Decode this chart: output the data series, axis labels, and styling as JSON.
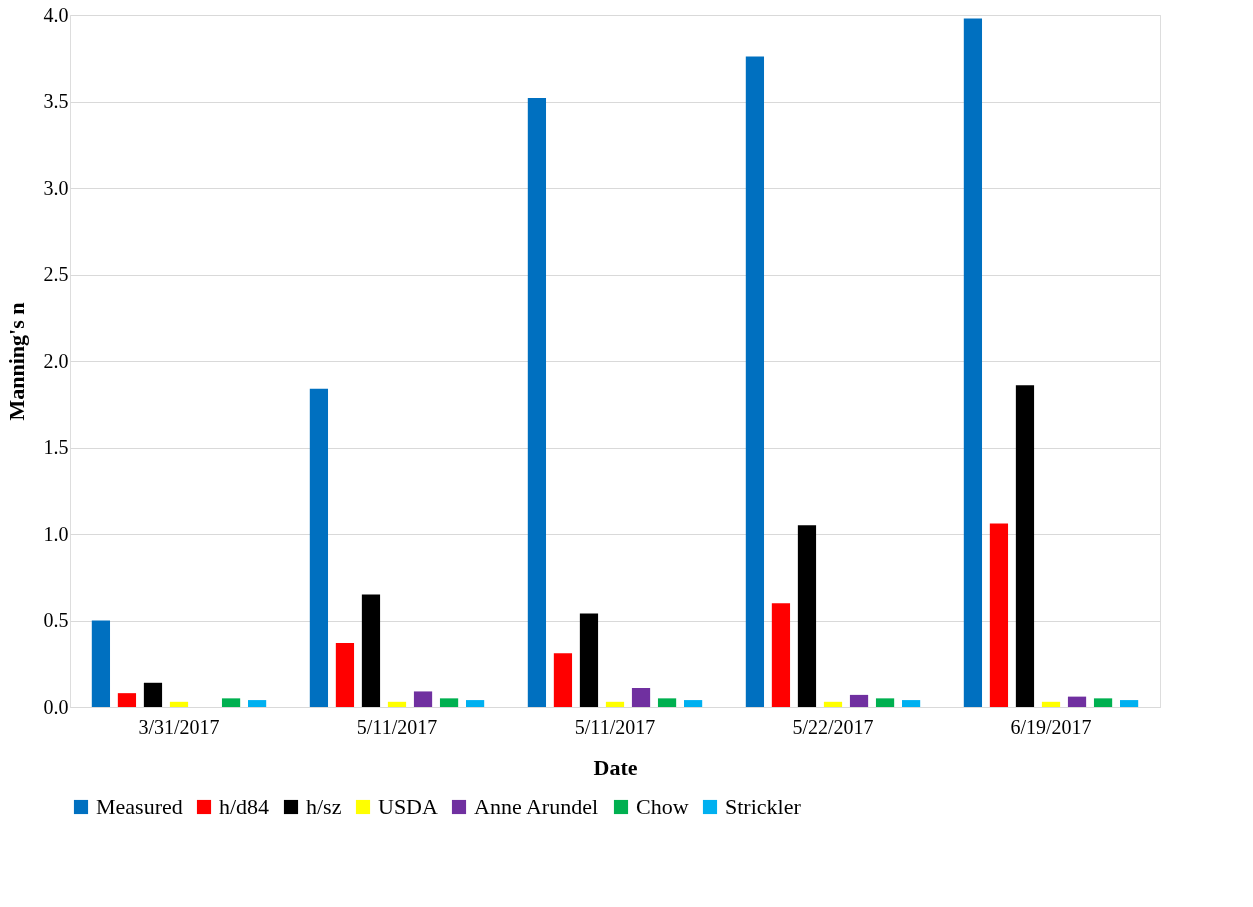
{
  "chart_data": {
    "type": "bar",
    "xlabel": "Date",
    "ylabel": "Manning's n",
    "categories": [
      "3/31/2017",
      "5/11/2017",
      "5/11/2017",
      "5/22/2017",
      "6/19/2017"
    ],
    "series": [
      {
        "name": "Measured",
        "color": "#0070c0",
        "values": [
          0.5,
          1.84,
          3.52,
          3.76,
          3.98
        ]
      },
      {
        "name": "h/d84",
        "color": "#ff0000",
        "values": [
          0.08,
          0.37,
          0.31,
          0.6,
          1.06
        ]
      },
      {
        "name": "h/sz",
        "color": "#000000",
        "values": [
          0.14,
          0.65,
          0.54,
          1.05,
          1.86
        ]
      },
      {
        "name": "USDA",
        "color": "#ffff00",
        "values": [
          0.03,
          0.03,
          0.03,
          0.03,
          0.03
        ]
      },
      {
        "name": "Anne Arundel",
        "color": "#7030a0",
        "values": [
          0.0,
          0.09,
          0.11,
          0.07,
          0.06
        ]
      },
      {
        "name": "Chow",
        "color": "#00b050",
        "values": [
          0.05,
          0.05,
          0.05,
          0.05,
          0.05
        ]
      },
      {
        "name": "Strickler",
        "color": "#00b0f0",
        "values": [
          0.04,
          0.04,
          0.04,
          0.04,
          0.04
        ]
      }
    ],
    "ylim": [
      0,
      4
    ],
    "yticks": [
      {
        "value": 0,
        "label": "0.0"
      },
      {
        "value": 0.5,
        "label": "0.5"
      },
      {
        "value": 1,
        "label": "1.0"
      },
      {
        "value": 1.5,
        "label": "1.5"
      },
      {
        "value": 2,
        "label": "2.0"
      },
      {
        "value": 2.5,
        "label": "2.5"
      },
      {
        "value": 3,
        "label": "3.0"
      },
      {
        "value": 3.5,
        "label": "3.5"
      },
      {
        "value": 4,
        "label": "4.0"
      }
    ],
    "grid": "y",
    "legend": "bottom"
  }
}
